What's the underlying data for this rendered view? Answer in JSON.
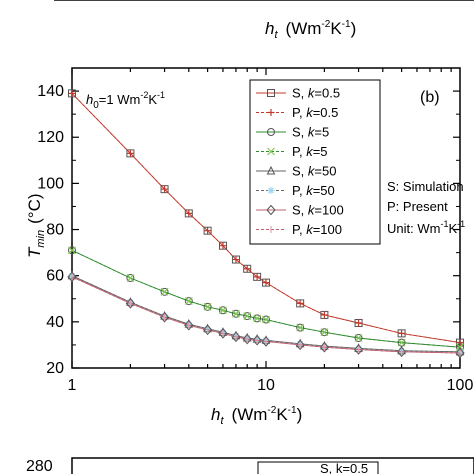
{
  "top_remnant": {
    "tick_left": "1",
    "tick_mid": "10",
    "tick_right": "100",
    "xlabel_var": "h",
    "xlabel_sub": "t",
    "xlabel_units": "(Wm",
    "xlabel_exp": "-2",
    "xlabel_units2": "K",
    "xlabel_exp2": "-1",
    "xlabel_close": ")"
  },
  "chart_data": {
    "type": "line",
    "panel_label": "(b)",
    "annotation": {
      "var": "h",
      "sub": "0",
      "value": "=1 Wm",
      "exp": "-2",
      "unit2": "K",
      "exp2": "-1"
    },
    "xlabel": {
      "var": "h",
      "sub": "t",
      "units": "(Wm",
      "exp": "-2",
      "units2": "K",
      "exp2": "-1",
      "close": ")"
    },
    "ylabel": {
      "var": "T",
      "sub": "min",
      "units": "(°C)"
    },
    "x_scale": "log",
    "xlim": [
      1,
      100
    ],
    "ylim": [
      20,
      150
    ],
    "x_ticks": [
      1,
      10,
      100
    ],
    "x_tick_labels": [
      "1",
      "10",
      "100"
    ],
    "y_ticks": [
      20,
      40,
      60,
      80,
      100,
      120,
      140
    ],
    "y_tick_labels": [
      "20",
      "40",
      "60",
      "80",
      "100",
      "120",
      "140"
    ],
    "series": [
      {
        "name": "S, k=0.5",
        "label_prefix": "S, ",
        "label_k": "k",
        "label_val": "=0.5",
        "marker": "square",
        "color": "#555555",
        "line": "#c0392b",
        "x": [
          1,
          2,
          3,
          4,
          5,
          6,
          7,
          8,
          9,
          10,
          15,
          20,
          30,
          50,
          100
        ],
        "y": [
          139,
          113,
          97.5,
          87,
          79.5,
          73,
          67,
          63,
          59.5,
          57,
          48,
          43,
          39.5,
          35,
          31
        ]
      },
      {
        "name": "P, k=0.5",
        "label_prefix": "P, ",
        "label_k": "k",
        "label_val": "=0.5",
        "marker": "plus",
        "color": "#c0392b",
        "line": "#c0392b",
        "x": [
          1,
          2,
          3,
          4,
          5,
          6,
          7,
          8,
          9,
          10,
          15,
          20,
          30,
          50,
          100
        ],
        "y": [
          139,
          113,
          97.5,
          87,
          79.5,
          73,
          67,
          63,
          59.5,
          57,
          48,
          43,
          39.5,
          35,
          31
        ]
      },
      {
        "name": "S, k=5",
        "label_prefix": "S, ",
        "label_k": "k",
        "label_val": "=5",
        "marker": "circle",
        "color": "#555555",
        "line": "#2e8b2e",
        "x": [
          1,
          2,
          3,
          4,
          5,
          6,
          7,
          8,
          9,
          10,
          15,
          20,
          30,
          50,
          100
        ],
        "y": [
          71,
          59,
          53,
          49,
          46.5,
          45,
          43.5,
          42.5,
          41.5,
          41,
          37.5,
          35.5,
          33,
          31,
          29
        ]
      },
      {
        "name": "P, k=5",
        "label_prefix": "P, ",
        "label_k": "k",
        "label_val": "=5",
        "marker": "x",
        "color": "#7ec850",
        "line": "#2e8b2e",
        "x": [
          1,
          2,
          3,
          4,
          5,
          6,
          7,
          8,
          9,
          10,
          15,
          20,
          30,
          50,
          100
        ],
        "y": [
          71,
          59,
          53,
          49,
          46.5,
          45,
          43.5,
          42.5,
          41.5,
          41,
          37.5,
          35.5,
          33,
          31,
          29
        ]
      },
      {
        "name": "S, k=50",
        "label_prefix": "S, ",
        "label_k": "k",
        "label_val": "=50",
        "marker": "triangle",
        "color": "#555555",
        "line": "#666666",
        "x": [
          1,
          2,
          3,
          4,
          5,
          6,
          7,
          8,
          9,
          10,
          15,
          20,
          30,
          50,
          100
        ],
        "y": [
          60,
          48.5,
          42.5,
          39,
          37,
          35.5,
          34,
          33,
          32.5,
          32,
          30.5,
          29.5,
          28.5,
          27.5,
          27
        ]
      },
      {
        "name": "P, k=50",
        "label_prefix": "P, ",
        "label_k": "k",
        "label_val": "=50",
        "marker": "star",
        "color": "#9fd8f0",
        "line": "#666666",
        "x": [
          1,
          2,
          3,
          4,
          5,
          6,
          7,
          8,
          9,
          10,
          15,
          20,
          30,
          50,
          100
        ],
        "y": [
          60,
          48.5,
          42.5,
          39,
          37,
          35.5,
          34,
          33,
          32.5,
          32,
          30.5,
          29.5,
          28.5,
          27.5,
          27
        ]
      },
      {
        "name": "S, k=100",
        "label_prefix": "S, ",
        "label_k": "k",
        "label_val": "=100",
        "marker": "diamond",
        "color": "#555555",
        "line": "#c06070",
        "x": [
          1,
          2,
          3,
          4,
          5,
          6,
          7,
          8,
          9,
          10,
          15,
          20,
          30,
          50,
          100
        ],
        "y": [
          59.5,
          48,
          42,
          38.5,
          36.5,
          35,
          33.5,
          32.5,
          32,
          31.5,
          30,
          29,
          28,
          27,
          26.5
        ]
      },
      {
        "name": "P, k=100",
        "label_prefix": "P, ",
        "label_k": "k",
        "label_val": "=100",
        "marker": "vbar",
        "color": "#e8a0b0",
        "line": "#c06070",
        "x": [
          1,
          2,
          3,
          4,
          5,
          6,
          7,
          8,
          9,
          10,
          15,
          20,
          30,
          50,
          100
        ],
        "y": [
          59.5,
          48,
          42,
          38.5,
          36.5,
          35,
          33.5,
          32.5,
          32,
          31.5,
          30,
          29,
          28,
          27,
          26.5
        ]
      }
    ],
    "side_notes": {
      "sim": "S: Simulation",
      "present": "P: Present",
      "unit_prefix": "Unit: Wm",
      "unit_exp": "-1",
      "unit_k": "K",
      "unit_exp2": "-1"
    },
    "legend_position": "top-right"
  },
  "bottom_remnant": {
    "tick_label": "280",
    "legend_fragment": "S, k=0.5"
  }
}
